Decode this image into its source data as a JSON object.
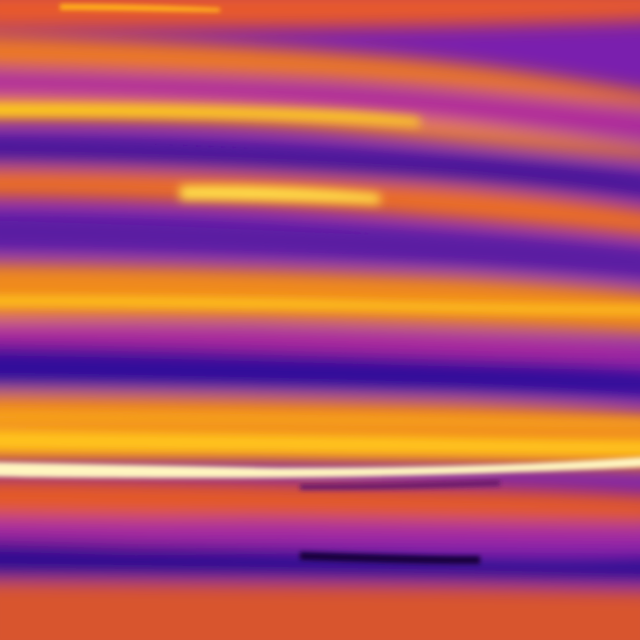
{
  "image": {
    "subject": "",
    "palette": {
      "cold": "#2a0c8a",
      "cool": "#6a1aa8",
      "mid": "#b0269e",
      "warm": "#e8581e",
      "hot": "#f59a1a",
      "hotter": "#ffd21a",
      "hottest": "#fff6c8"
    }
  }
}
